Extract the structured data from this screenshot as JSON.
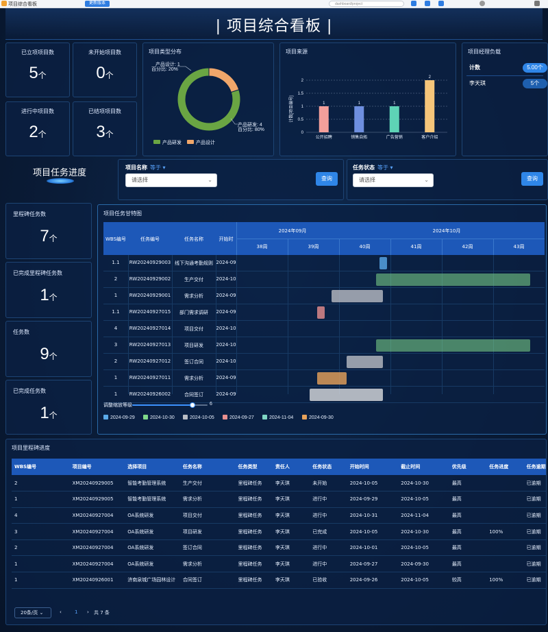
{
  "browser": {
    "tab_title": "项目综合看板",
    "button_label": "更新版本",
    "address": "dashboard/project"
  },
  "header": {
    "title": "|  项目综合看板  |"
  },
  "stats": {
    "established": {
      "label": "已立项项目数",
      "value": "5",
      "unit": "个"
    },
    "not_started": {
      "label": "未开始项目数",
      "value": "0",
      "unit": "个"
    },
    "in_progress": {
      "label": "进行中项目数",
      "value": "2",
      "unit": "个"
    },
    "completed": {
      "label": "已结项项目数",
      "value": "3",
      "unit": "个"
    }
  },
  "type_distribution": {
    "title": "项目类型分布",
    "callout_design": {
      "line1": "产品设计: 1",
      "line2": "百分比: 20%"
    },
    "callout_dev": {
      "line1": "产品研发: 4",
      "line2": "百分比: 80%"
    },
    "legend": [
      "产品研发",
      "产品设计"
    ],
    "colors": {
      "dev": "#6aa543",
      "design": "#f0a66a"
    }
  },
  "chart_data": [
    {
      "type": "pie",
      "title": "项目类型分布",
      "categories": [
        "产品研发",
        "产品设计"
      ],
      "values": [
        4,
        1
      ],
      "percents": [
        80,
        20
      ]
    },
    {
      "type": "bar",
      "title": "项目来源",
      "categories": [
        "公开招聘",
        "销售自拓",
        "广告营销",
        "客户介绍"
      ],
      "values": [
        1,
        1,
        1,
        2
      ],
      "ylabel": "计数[项目编号]",
      "ylim": [
        0,
        2
      ],
      "yticks": [
        "0",
        "0.5",
        "1",
        "1.5",
        "2"
      ],
      "colors": [
        "#f39f9b",
        "#6e8fe0",
        "#5ed3b6",
        "#f5c57a"
      ]
    }
  ],
  "source": {
    "title": "项目来源"
  },
  "workload": {
    "title": "项目经理负载",
    "row1_label": "计数",
    "row1_value": "5.00个",
    "row2_label": "李天琪",
    "row2_value": "5个"
  },
  "progress_section": {
    "title": "项目任务进度"
  },
  "filters": {
    "name_label": "项目名称",
    "name_op": "等于 ▾",
    "name_placeholder": "请选择",
    "status_label": "任务状态",
    "status_op": "等于 ▾",
    "status_placeholder": "请选择",
    "query_label": "查询"
  },
  "side_stats": {
    "milestone_tasks": {
      "label": "里程碑任务数",
      "value": "7",
      "unit": "个"
    },
    "done_milestone": {
      "label": "已完成里程碑任务数",
      "value": "1",
      "unit": "个"
    },
    "tasks": {
      "label": "任务数",
      "value": "9",
      "unit": "个"
    },
    "done_tasks": {
      "label": "已完成任务数",
      "value": "1",
      "unit": "个"
    }
  },
  "gantt": {
    "title": "项目任务甘特图",
    "headers": {
      "wbs": "WBS编号",
      "task_no": "任务编号",
      "task_name": "任务名称",
      "start": "开始时"
    },
    "months": [
      "2024年09月",
      "2024年10月"
    ],
    "weeks": [
      "38周",
      "39周",
      "40周",
      "41周",
      "42周",
      "43周"
    ],
    "rows": [
      {
        "wbs": "1.1",
        "no": "RW20240929003",
        "name": "线下沟通考勤规则",
        "start": "2024-09"
      },
      {
        "wbs": "2",
        "no": "RW20240929002",
        "name": "生产交付",
        "start": "2024-10"
      },
      {
        "wbs": "1",
        "no": "RW20240929001",
        "name": "需求分析",
        "start": "2024-09"
      },
      {
        "wbs": "1.1",
        "no": "RW20240927015",
        "name": "部门需求调研",
        "start": "2024-09"
      },
      {
        "wbs": "4",
        "no": "RW20240927014",
        "name": "项目交付",
        "start": "2024-10"
      },
      {
        "wbs": "3",
        "no": "RW20240927013",
        "name": "项目研发",
        "start": "2024-10"
      },
      {
        "wbs": "2",
        "no": "RW20240927012",
        "name": "签订合同",
        "start": "2024-10"
      },
      {
        "wbs": "1",
        "no": "RW20240927011",
        "name": "需求分析",
        "start": "2024-09"
      },
      {
        "wbs": "1",
        "no": "RW20240926002",
        "name": "合同签订",
        "start": "2024-09"
      }
    ],
    "slider_label": "调整缩放等级",
    "slider_value": "6",
    "slider_fraction": 0.8,
    "legend": [
      {
        "label": "2024-09-29",
        "color": "#5aa9e8"
      },
      {
        "label": "2024-10-30",
        "color": "#7fd98a"
      },
      {
        "label": "2024-10-05",
        "color": "#b9bdc4"
      },
      {
        "label": "2024-09-27",
        "color": "#e88f8f"
      },
      {
        "label": "2024-11-04",
        "color": "#7fd6c4"
      },
      {
        "label": "2024-09-30",
        "color": "#e8a25a"
      }
    ]
  },
  "milestone": {
    "title": "项目里程碑进度",
    "columns": [
      "WBS编号",
      "项目编号",
      "选择项目",
      "任务名称",
      "任务类型",
      "责任人",
      "任务状态",
      "开始时间",
      "截止时间",
      "优先级",
      "任务进度",
      "任务逾期"
    ],
    "rows": [
      [
        "2",
        "XM20240929005",
        "智能考勤管理系统",
        "生产交付",
        "里程碑任务",
        "李天琪",
        "未开始",
        "2024-10-05",
        "2024-10-30",
        "最高",
        "",
        "已逾期"
      ],
      [
        "1",
        "XM20240929005",
        "智能考勤管理系统",
        "需求分析",
        "里程碑任务",
        "李天琪",
        "进行中",
        "2024-09-29",
        "2024-10-05",
        "最高",
        "",
        "已逾期"
      ],
      [
        "4",
        "XM20240927004",
        "OA系统研发",
        "项目交付",
        "里程碑任务",
        "李天琪",
        "进行中",
        "2024-10-31",
        "2024-11-04",
        "最高",
        "",
        "已逾期"
      ],
      [
        "3",
        "XM20240927004",
        "OA系统研发",
        "项目研发",
        "里程碑任务",
        "李天琪",
        "已完成",
        "2024-10-05",
        "2024-10-30",
        "最高",
        "100%",
        "已逾期"
      ],
      [
        "2",
        "XM20240927004",
        "OA系统研发",
        "签订合同",
        "里程碑任务",
        "李天琪",
        "进行中",
        "2024-10-01",
        "2024-10-05",
        "最高",
        "",
        "已逾期"
      ],
      [
        "1",
        "XM20240927004",
        "OA系统研发",
        "需求分析",
        "里程碑任务",
        "李天琪",
        "进行中",
        "2024-09-27",
        "2024-09-30",
        "最高",
        "",
        "已逾期"
      ],
      [
        "1",
        "XM20240926001",
        "济南泉城广场园林设计",
        "合同签订",
        "里程碑任务",
        "李天琪",
        "已验收",
        "2024-09-26",
        "2024-10-05",
        "较高",
        "100%",
        "已逾期"
      ]
    ],
    "pager": {
      "page_size": "20条/页 ⌄",
      "prev": "‹",
      "page": "1",
      "next": "›",
      "total": "共 7 条"
    }
  }
}
